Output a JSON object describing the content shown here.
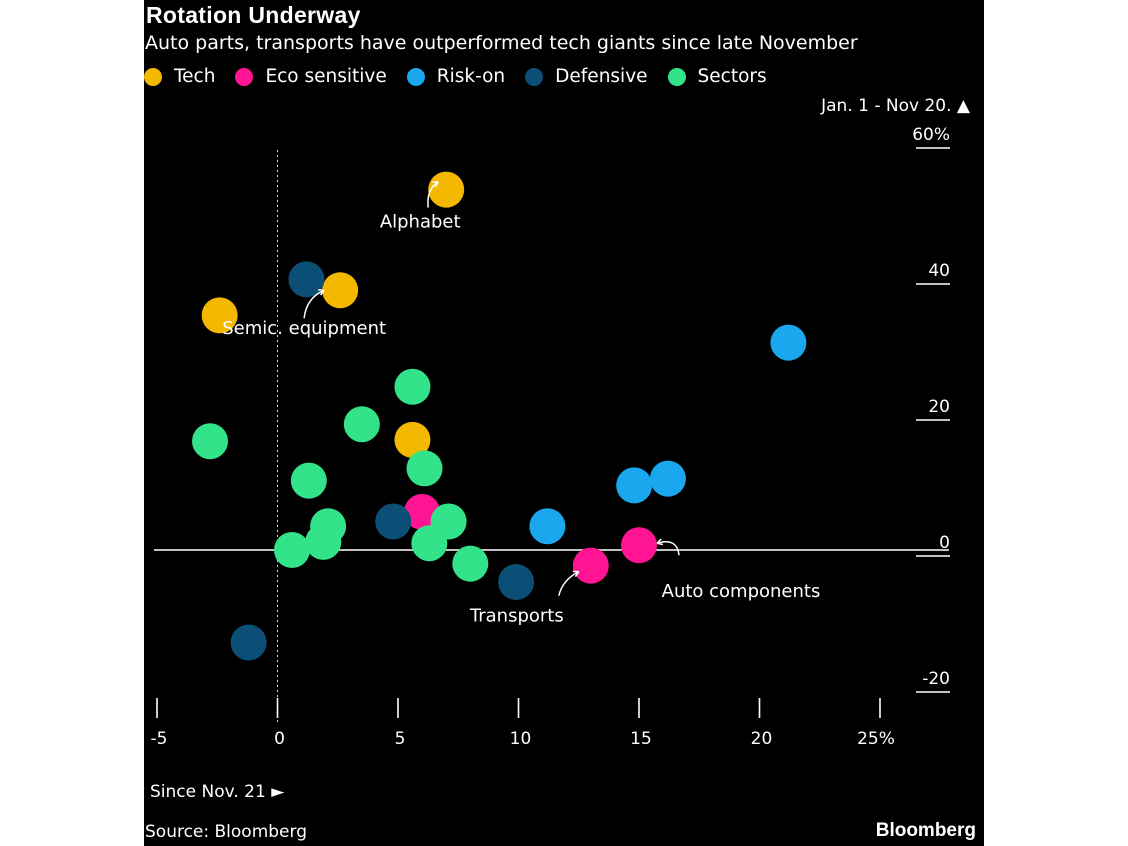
{
  "chart_data": {
    "type": "scatter",
    "title": "Rotation Underway",
    "subtitle": "Auto parts, transports have outperformed tech giants since late November",
    "y_axis_title": "Jan. 1 - Nov 20. ▲",
    "x_axis_title": "Since Nov. 21 ►",
    "xlim": [
      -5,
      25
    ],
    "ylim": [
      -20,
      60
    ],
    "x_ticks": [
      {
        "value": -5,
        "label": "-5"
      },
      {
        "value": 0,
        "label": "0"
      },
      {
        "value": 5,
        "label": "5"
      },
      {
        "value": 10,
        "label": "10"
      },
      {
        "value": 15,
        "label": "15"
      },
      {
        "value": 20,
        "label": "20"
      },
      {
        "value": 25,
        "label": "25%"
      }
    ],
    "y_ticks": [
      {
        "value": 60,
        "label": "60%"
      },
      {
        "value": 40,
        "label": "40"
      },
      {
        "value": 20,
        "label": "20"
      },
      {
        "value": 0,
        "label": "0"
      },
      {
        "value": -20,
        "label": "-20"
      }
    ],
    "series": [
      {
        "name": "Tech",
        "color": "#f5b800",
        "points": [
          [
            7.0,
            53
          ],
          [
            2.6,
            38.2
          ],
          [
            -2.4,
            34.5
          ],
          [
            5.6,
            16.2
          ]
        ]
      },
      {
        "name": "Eco sensitive",
        "color": "#ff1493",
        "points": [
          [
            6.0,
            5.6
          ],
          [
            15.0,
            0.7
          ],
          [
            13.0,
            -2.3
          ]
        ]
      },
      {
        "name": "Risk-on",
        "color": "#1aa7ee",
        "points": [
          [
            21.2,
            30.5
          ],
          [
            16.2,
            10.5
          ],
          [
            14.8,
            9.5
          ],
          [
            11.2,
            3.5
          ]
        ]
      },
      {
        "name": "Defensive",
        "color": "#0b4f77",
        "points": [
          [
            1.2,
            39.8
          ],
          [
            4.8,
            4.2
          ],
          [
            9.9,
            -4.7
          ],
          [
            -1.2,
            -13.6
          ]
        ]
      },
      {
        "name": "Sectors",
        "color": "#33e389",
        "points": [
          [
            5.6,
            24.0
          ],
          [
            3.5,
            18.5
          ],
          [
            -2.8,
            16.0
          ],
          [
            6.1,
            12.0
          ],
          [
            1.3,
            10.2
          ],
          [
            7.1,
            4.2
          ],
          [
            2.1,
            3.5
          ],
          [
            1.9,
            1.2
          ],
          [
            6.3,
            1.0
          ],
          [
            0.6,
            0.0
          ],
          [
            8.0,
            -2.0
          ]
        ]
      }
    ],
    "annotations": [
      {
        "text": "Alphabet",
        "target": [
          7.0,
          53
        ]
      },
      {
        "text": "Semic. equipment",
        "target": [
          2.6,
          38.2
        ]
      },
      {
        "text": "Transports",
        "target": [
          13.0,
          -2.3
        ]
      },
      {
        "text": "Auto components",
        "target": [
          15.0,
          0.7
        ]
      }
    ],
    "source": "Source: Bloomberg",
    "brand": "Bloomberg"
  }
}
